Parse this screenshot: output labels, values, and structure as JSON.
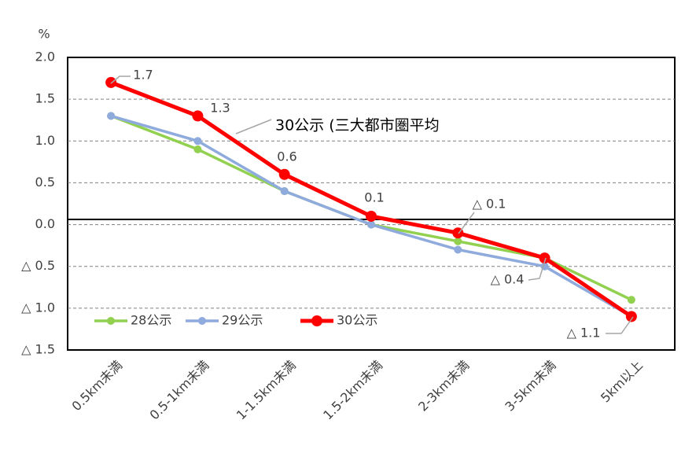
{
  "chart_data": {
    "type": "line",
    "y_axis_label": "%",
    "categories": [
      "0.5km未満",
      "0.5-1km未満",
      "1-1.5km未満",
      "1.5-2km未満",
      "2-3km未満",
      "3-5km未満",
      "5km以上"
    ],
    "series": [
      {
        "name": "28公示",
        "color": "#92d050",
        "values": [
          1.3,
          0.9,
          0.4,
          0.0,
          -0.2,
          -0.4,
          -0.9
        ]
      },
      {
        "name": "29公示",
        "color": "#8faadc",
        "values": [
          1.3,
          1.0,
          0.4,
          0.0,
          -0.3,
          -0.5,
          -1.1
        ]
      },
      {
        "name": "30公示",
        "color": "#ff0000",
        "values": [
          1.7,
          1.3,
          0.6,
          0.1,
          -0.1,
          -0.4,
          -1.1
        ],
        "value_labels": [
          "1.7",
          "1.3",
          "0.6",
          "0.1",
          "△ 0.1",
          "△ 0.4",
          "△ 1.1"
        ]
      }
    ],
    "annotation": "30公示 (三大都市圏平均",
    "ylim": [
      -1.5,
      2.0
    ],
    "yticks": [
      {
        "value": 2.0,
        "label": "2.0"
      },
      1.5,
      {
        "value": 1.0,
        "label": "1.0"
      },
      0.5,
      {
        "value": 0.0,
        "label": "0.0"
      },
      {
        "value": -0.5,
        "label": "△ 0.5"
      },
      {
        "value": -1.0,
        "label": "△ 1.0"
      },
      {
        "value": -1.5,
        "label": "△ 1.5"
      }
    ],
    "grid": true,
    "legend": "lower left"
  }
}
